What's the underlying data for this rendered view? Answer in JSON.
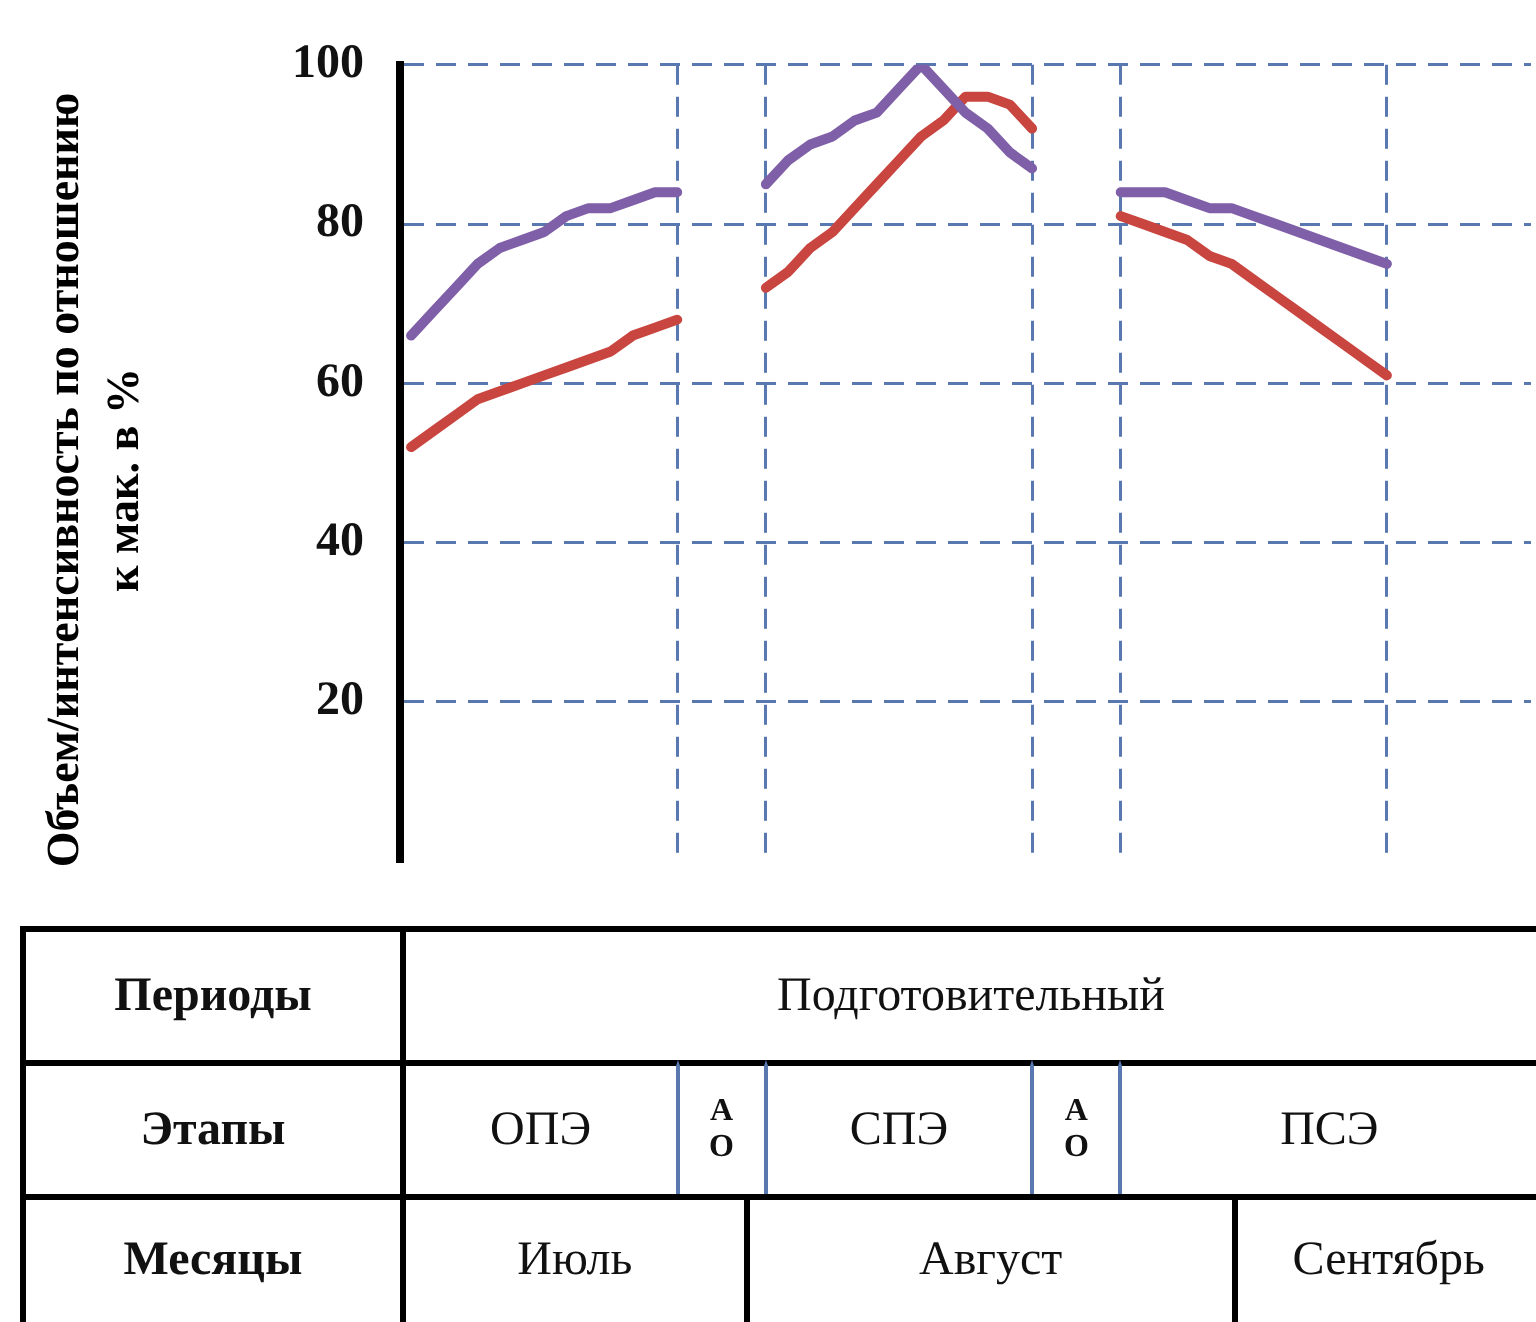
{
  "chart_data": {
    "type": "line",
    "ylabel": "Объем/интенсивность по отношению к мак. в %",
    "categories": [
      null,
      null,
      null,
      null,
      null,
      null,
      null,
      null,
      null,
      null,
      null,
      null,
      null,
      null,
      null,
      null,
      null,
      null,
      null,
      null,
      null,
      null,
      null,
      null,
      null,
      null,
      null,
      null,
      null,
      null,
      null,
      null,
      null,
      null,
      null,
      null,
      null,
      null,
      null,
      null,
      null,
      null,
      null,
      null,
      null,
      null,
      null,
      null,
      null,
      null,
      null
    ],
    "ylim": [
      0,
      100
    ],
    "yticks": [
      20,
      40,
      60,
      80,
      100
    ],
    "grid": true,
    "legend": false,
    "marker": "none",
    "line_style": "solid",
    "series": [
      {
        "color": "#7f5fa8",
        "values": [
          66,
          69,
          72,
          75,
          77,
          78,
          79,
          81,
          82,
          82,
          83,
          84,
          84,
          null,
          null,
          null,
          85,
          88,
          90,
          91,
          93,
          94,
          97,
          100,
          97,
          94,
          92,
          89,
          87,
          null,
          null,
          null,
          84,
          84,
          84,
          83,
          82,
          82,
          81,
          80,
          79,
          78,
          77,
          76,
          75,
          null,
          null,
          null,
          null,
          null,
          null
        ]
      },
      {
        "color": "#c9453f",
        "values": [
          52,
          54,
          56,
          58,
          59,
          60,
          61,
          62,
          63,
          64,
          66,
          67,
          68,
          null,
          null,
          null,
          72,
          74,
          77,
          79,
          82,
          85,
          88,
          91,
          93,
          96,
          96,
          95,
          92,
          null,
          null,
          null,
          81,
          80,
          79,
          78,
          76,
          75,
          73,
          71,
          69,
          67,
          65,
          63,
          61,
          null,
          null,
          null,
          null,
          null,
          null
        ]
      }
    ],
    "annotations": [
      "Периоды",
      "Подготовительный",
      "Этапы",
      "ОПЭ",
      "А О",
      "СПЭ",
      "А О",
      "ПСЭ",
      "Месяцы",
      "Июль",
      "Август",
      "Сентябрь"
    ]
  }
}
